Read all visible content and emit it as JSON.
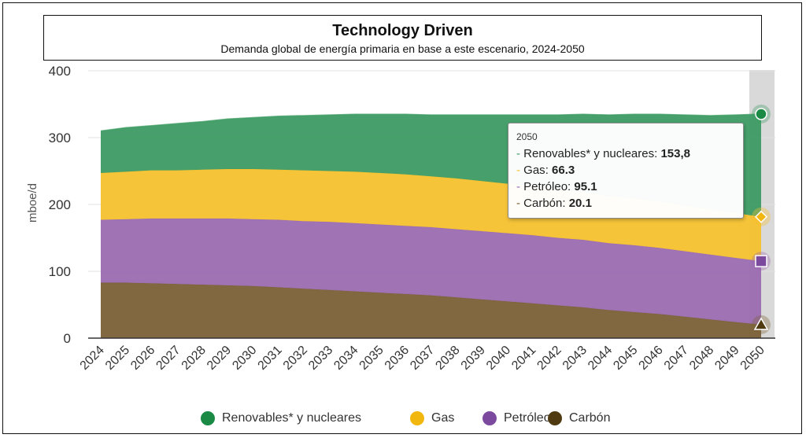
{
  "chart_data": {
    "type": "area",
    "stacked": true,
    "title": "Technology Driven",
    "subtitle": "Demanda global de energía primaria en base a este escenario, 2024-2050",
    "xlabel": "",
    "ylabel": "mboe/d",
    "ylim": [
      0,
      400
    ],
    "yticks": [
      0,
      100,
      200,
      300,
      400
    ],
    "grid": true,
    "legend_position": "bottom",
    "x": [
      "2024",
      "2025",
      "2026",
      "2027",
      "2028",
      "2029",
      "2030",
      "2031",
      "2032",
      "2033",
      "2034",
      "2035",
      "2036",
      "2037",
      "2038",
      "2039",
      "2040",
      "2041",
      "2042",
      "2043",
      "2044",
      "2045",
      "2046",
      "2047",
      "2048",
      "2049",
      "2050"
    ],
    "series": [
      {
        "name": "Carbón",
        "color": "#7b6037",
        "marker": "triangle",
        "values": [
          83,
          83,
          82,
          81,
          80,
          79,
          78,
          76,
          74,
          72,
          70,
          68,
          66,
          64,
          61,
          58,
          55,
          52,
          49,
          46,
          42,
          39,
          36,
          32,
          28,
          24,
          20.1
        ]
      },
      {
        "name": "Petróleo",
        "color": "#9a6bb0",
        "marker": "square",
        "values": [
          94,
          95,
          97,
          98,
          99,
          100,
          100,
          101,
          101,
          102,
          102,
          102,
          102,
          102,
          102,
          102,
          102,
          102,
          101,
          101,
          100,
          100,
          99,
          98,
          97,
          96,
          95.1
        ]
      },
      {
        "name": "Gas",
        "color": "#f5c12e",
        "marker": "diamond",
        "values": [
          70,
          71,
          72,
          72,
          73,
          74,
          75,
          75,
          76,
          76,
          77,
          77,
          77,
          76,
          76,
          75,
          74,
          73,
          72,
          71,
          70,
          70,
          69,
          68,
          67,
          67,
          66.3
        ]
      },
      {
        "name": "Renovables* y nucleares",
        "color": "#3d9b63",
        "marker": "circle",
        "values": [
          63,
          66,
          67,
          70,
          72,
          75,
          77,
          80,
          82,
          84,
          86,
          88,
          90,
          92,
          95,
          99,
          103,
          107,
          112,
          117,
          122,
          126,
          131,
          136,
          141,
          147,
          153.8
        ]
      }
    ],
    "highlight_category": "2050"
  },
  "tooltip": {
    "header": "2050",
    "rows": [
      {
        "name": "Renovables* y nucleares",
        "value": "153,8",
        "color": "#3d9b63"
      },
      {
        "name": "Gas",
        "value": "66.3",
        "color": "#f5c12e"
      },
      {
        "name": "Petróleo",
        "value": "95.1",
        "color": "#9a6bb0"
      },
      {
        "name": "Carbón",
        "value": "20.1",
        "color": "#7b6037"
      }
    ]
  },
  "legend": [
    {
      "label": "Renovables* y nucleares",
      "color": "#1a8a45"
    },
    {
      "label": "Gas",
      "color": "#f2b70f"
    },
    {
      "label": "Petróleo",
      "color": "#7b4a9e"
    },
    {
      "label": "Carbón",
      "color": "#4f3a12"
    }
  ]
}
